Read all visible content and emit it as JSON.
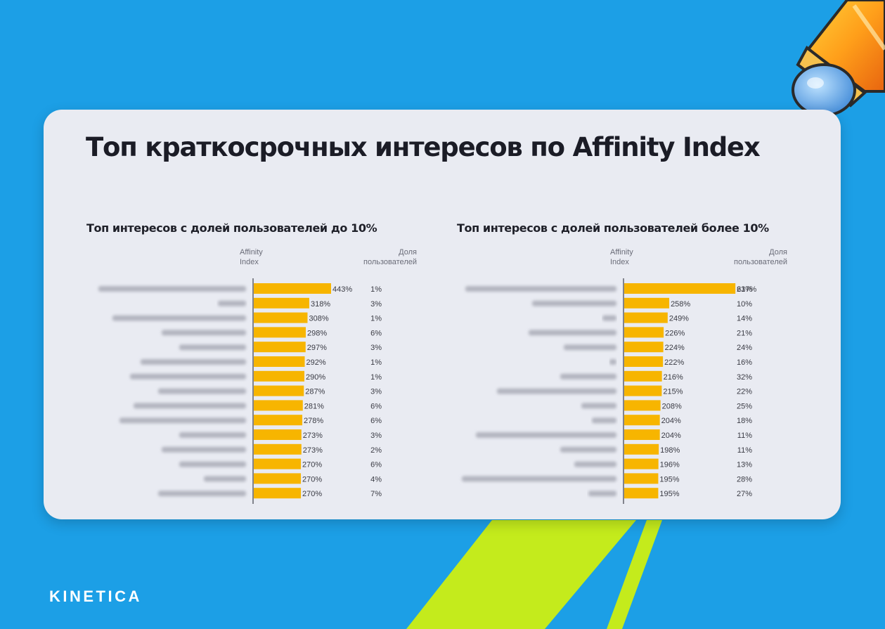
{
  "title": "Топ краткосрочных интересов по Affinity Index",
  "logo": "KINETICA",
  "panels": [
    {
      "title": "Топ интересов с долей пользователей до 10%",
      "col_affinity": "Affinity\nIndex",
      "col_share": "Доля\nпользователей"
    },
    {
      "title": "Топ интересов с долей пользователей более 10%",
      "col_affinity": "Affinity\nIndex",
      "col_share": "Доля\nпользователей"
    }
  ],
  "chart_data": [
    {
      "type": "bar",
      "orientation": "horizontal",
      "categories_blurred": true,
      "affinity_index": [
        443,
        318,
        308,
        298,
        297,
        292,
        290,
        287,
        281,
        278,
        273,
        273,
        270,
        270,
        270
      ],
      "affinity_labels": [
        "443%",
        "318%",
        "308%",
        "298%",
        "297%",
        "292%",
        "290%",
        "287%",
        "281%",
        "278%",
        "273%",
        "273%",
        "270%",
        "270%",
        "270%"
      ],
      "user_share_labels": [
        "1%",
        "3%",
        "1%",
        "6%",
        "3%",
        "1%",
        "1%",
        "3%",
        "6%",
        "6%",
        "3%",
        "2%",
        "6%",
        "4%",
        "7%"
      ],
      "bar_color": "#f7b500",
      "xlim": [
        0,
        650
      ]
    },
    {
      "type": "bar",
      "orientation": "horizontal",
      "categories_blurred": true,
      "affinity_index": [
        637,
        258,
        249,
        226,
        224,
        222,
        216,
        215,
        208,
        204,
        204,
        198,
        196,
        195,
        195
      ],
      "affinity_labels": [
        "637%",
        "258%",
        "249%",
        "226%",
        "224%",
        "222%",
        "216%",
        "215%",
        "208%",
        "204%",
        "204%",
        "198%",
        "196%",
        "195%",
        "195%"
      ],
      "user_share_labels": [
        "21%",
        "10%",
        "14%",
        "21%",
        "24%",
        "16%",
        "32%",
        "22%",
        "25%",
        "18%",
        "11%",
        "11%",
        "13%",
        "28%",
        "27%"
      ],
      "bar_color": "#f7b500",
      "xlim": [
        0,
        650
      ]
    }
  ]
}
